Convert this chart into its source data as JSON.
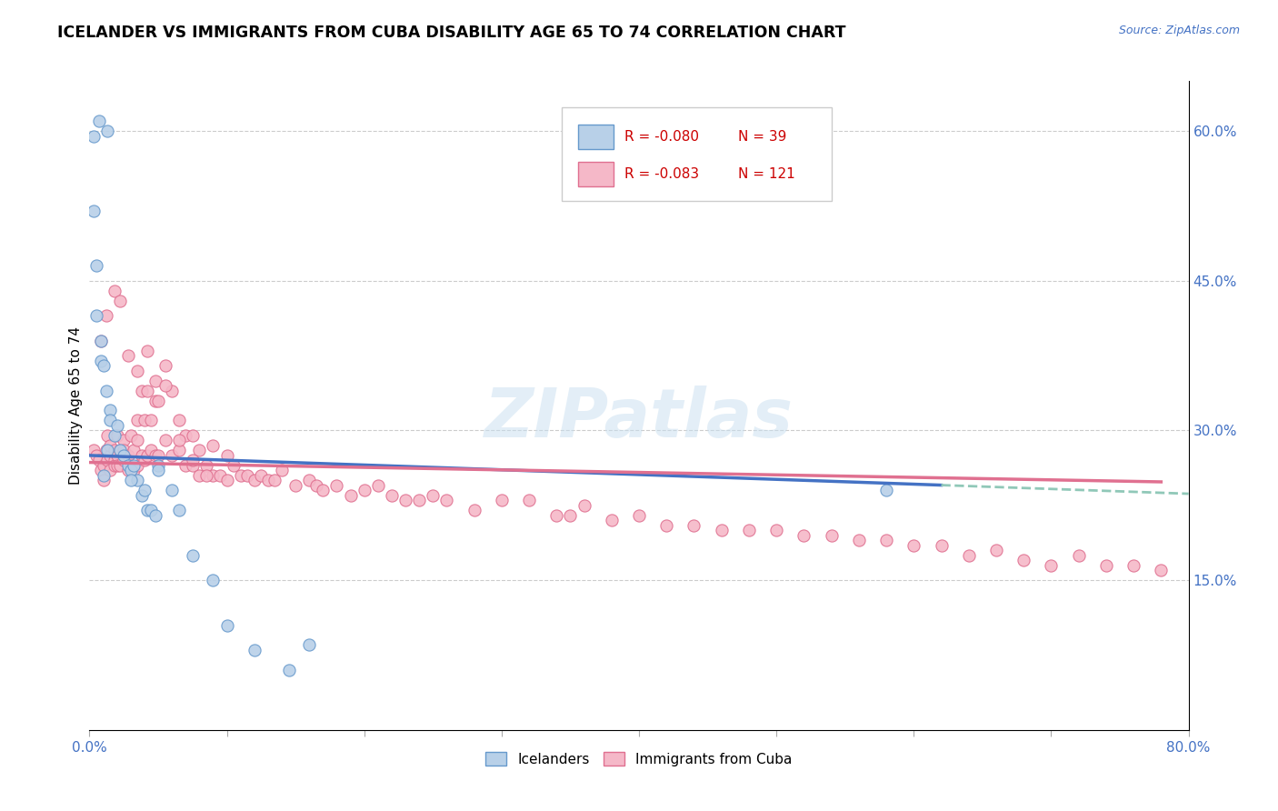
{
  "title": "ICELANDER VS IMMIGRANTS FROM CUBA DISABILITY AGE 65 TO 74 CORRELATION CHART",
  "source": "Source: ZipAtlas.com",
  "ylabel": "Disability Age 65 to 74",
  "xlim": [
    0.0,
    0.8
  ],
  "ylim": [
    0.0,
    0.65
  ],
  "xtick_positions": [
    0.0,
    0.1,
    0.2,
    0.3,
    0.4,
    0.5,
    0.6,
    0.7,
    0.8
  ],
  "xtick_labels": [
    "0.0%",
    "",
    "",
    "",
    "",
    "",
    "",
    "",
    "80.0%"
  ],
  "yticks_right": [
    0.15,
    0.3,
    0.45,
    0.6
  ],
  "ytick_labels_right": [
    "15.0%",
    "30.0%",
    "45.0%",
    "60.0%"
  ],
  "color_icelander_fill": "#b8d0e8",
  "color_icelander_edge": "#6699cc",
  "color_cuba_fill": "#f5b8c8",
  "color_cuba_edge": "#e07090",
  "color_trendline_icelander": "#4472c4",
  "color_trendline_cuba": "#e07090",
  "color_trendline_dashed": "#90c8b8",
  "color_grid": "#cccccc",
  "color_axis_text": "#4472c4",
  "watermark": "ZIPatlas",
  "legend_r1": "R = -0.080",
  "legend_n1": "N = 39",
  "legend_r2": "R = -0.083",
  "legend_n2": "N = 121",
  "ice_x": [
    0.003,
    0.007,
    0.013,
    0.003,
    0.005,
    0.008,
    0.008,
    0.01,
    0.012,
    0.015,
    0.015,
    0.018,
    0.02,
    0.022,
    0.025,
    0.028,
    0.03,
    0.032,
    0.035,
    0.038,
    0.04,
    0.042,
    0.045,
    0.048,
    0.05,
    0.06,
    0.065,
    0.075,
    0.09,
    0.1,
    0.12,
    0.145,
    0.16,
    0.58,
    0.005,
    0.01,
    0.013,
    0.03,
    0.05
  ],
  "ice_y": [
    0.595,
    0.61,
    0.6,
    0.52,
    0.415,
    0.39,
    0.37,
    0.365,
    0.34,
    0.32,
    0.31,
    0.295,
    0.305,
    0.28,
    0.275,
    0.265,
    0.26,
    0.265,
    0.25,
    0.235,
    0.24,
    0.22,
    0.22,
    0.215,
    0.265,
    0.24,
    0.22,
    0.175,
    0.15,
    0.105,
    0.08,
    0.06,
    0.085,
    0.24,
    0.465,
    0.255,
    0.28,
    0.25,
    0.26
  ],
  "cuba_x": [
    0.003,
    0.005,
    0.007,
    0.008,
    0.01,
    0.01,
    0.012,
    0.013,
    0.013,
    0.015,
    0.015,
    0.015,
    0.018,
    0.018,
    0.018,
    0.02,
    0.02,
    0.02,
    0.022,
    0.022,
    0.025,
    0.025,
    0.025,
    0.028,
    0.028,
    0.03,
    0.03,
    0.032,
    0.032,
    0.035,
    0.035,
    0.035,
    0.038,
    0.038,
    0.04,
    0.04,
    0.042,
    0.042,
    0.045,
    0.045,
    0.048,
    0.048,
    0.05,
    0.05,
    0.055,
    0.055,
    0.06,
    0.06,
    0.065,
    0.065,
    0.07,
    0.07,
    0.075,
    0.075,
    0.08,
    0.08,
    0.085,
    0.09,
    0.09,
    0.095,
    0.1,
    0.105,
    0.11,
    0.115,
    0.12,
    0.125,
    0.13,
    0.135,
    0.14,
    0.15,
    0.16,
    0.165,
    0.17,
    0.18,
    0.19,
    0.2,
    0.21,
    0.22,
    0.23,
    0.24,
    0.25,
    0.26,
    0.28,
    0.3,
    0.32,
    0.34,
    0.35,
    0.36,
    0.38,
    0.4,
    0.42,
    0.44,
    0.46,
    0.48,
    0.5,
    0.52,
    0.54,
    0.56,
    0.58,
    0.6,
    0.62,
    0.64,
    0.66,
    0.68,
    0.7,
    0.72,
    0.74,
    0.76,
    0.78,
    0.008,
    0.012,
    0.018,
    0.022,
    0.028,
    0.035,
    0.042,
    0.048,
    0.055,
    0.065,
    0.075,
    0.085,
    0.1
  ],
  "cuba_y": [
    0.28,
    0.275,
    0.27,
    0.26,
    0.25,
    0.265,
    0.28,
    0.295,
    0.27,
    0.275,
    0.26,
    0.285,
    0.27,
    0.28,
    0.265,
    0.275,
    0.295,
    0.265,
    0.28,
    0.265,
    0.29,
    0.28,
    0.27,
    0.275,
    0.26,
    0.295,
    0.265,
    0.28,
    0.26,
    0.31,
    0.29,
    0.265,
    0.34,
    0.275,
    0.31,
    0.27,
    0.34,
    0.275,
    0.31,
    0.28,
    0.33,
    0.275,
    0.33,
    0.275,
    0.365,
    0.29,
    0.34,
    0.275,
    0.31,
    0.28,
    0.295,
    0.265,
    0.295,
    0.265,
    0.28,
    0.255,
    0.265,
    0.285,
    0.255,
    0.255,
    0.275,
    0.265,
    0.255,
    0.255,
    0.25,
    0.255,
    0.25,
    0.25,
    0.26,
    0.245,
    0.25,
    0.245,
    0.24,
    0.245,
    0.235,
    0.24,
    0.245,
    0.235,
    0.23,
    0.23,
    0.235,
    0.23,
    0.22,
    0.23,
    0.23,
    0.215,
    0.215,
    0.225,
    0.21,
    0.215,
    0.205,
    0.205,
    0.2,
    0.2,
    0.2,
    0.195,
    0.195,
    0.19,
    0.19,
    0.185,
    0.185,
    0.175,
    0.18,
    0.17,
    0.165,
    0.175,
    0.165,
    0.165,
    0.16,
    0.39,
    0.415,
    0.44,
    0.43,
    0.375,
    0.36,
    0.38,
    0.35,
    0.345,
    0.29,
    0.27,
    0.255,
    0.25
  ]
}
